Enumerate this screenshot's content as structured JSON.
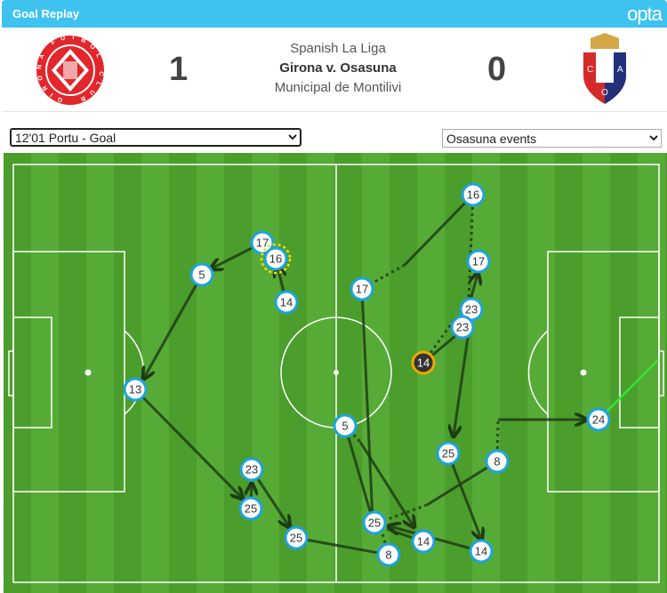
{
  "header": {
    "title": "Goal Replay",
    "brand": "opta",
    "competition": "Spanish La Liga",
    "fixture": "Girona v. Osasuna",
    "venue": "Municipal de Montilivi",
    "home_score": "1",
    "away_score": "0",
    "home_team_logo_text": "GIRONA FUTBOL CLUB",
    "away_team_logo_text": "C A O"
  },
  "controls": {
    "event_select": "12'01 Portu - Goal",
    "team_select": "Osasuna events"
  },
  "colors": {
    "accent": "#3ec3f0",
    "node_border": "#1ea3dc",
    "highlight": "#f0a800",
    "goal_shot": "#33e633"
  },
  "pitch": {
    "players": [
      "17",
      "16",
      "5",
      "14",
      "13",
      "23",
      "25",
      "25",
      "8",
      "17",
      "16",
      "17",
      "23",
      "23",
      "14",
      "5",
      "25",
      "8",
      "24",
      "25",
      "14",
      "14"
    ]
  }
}
